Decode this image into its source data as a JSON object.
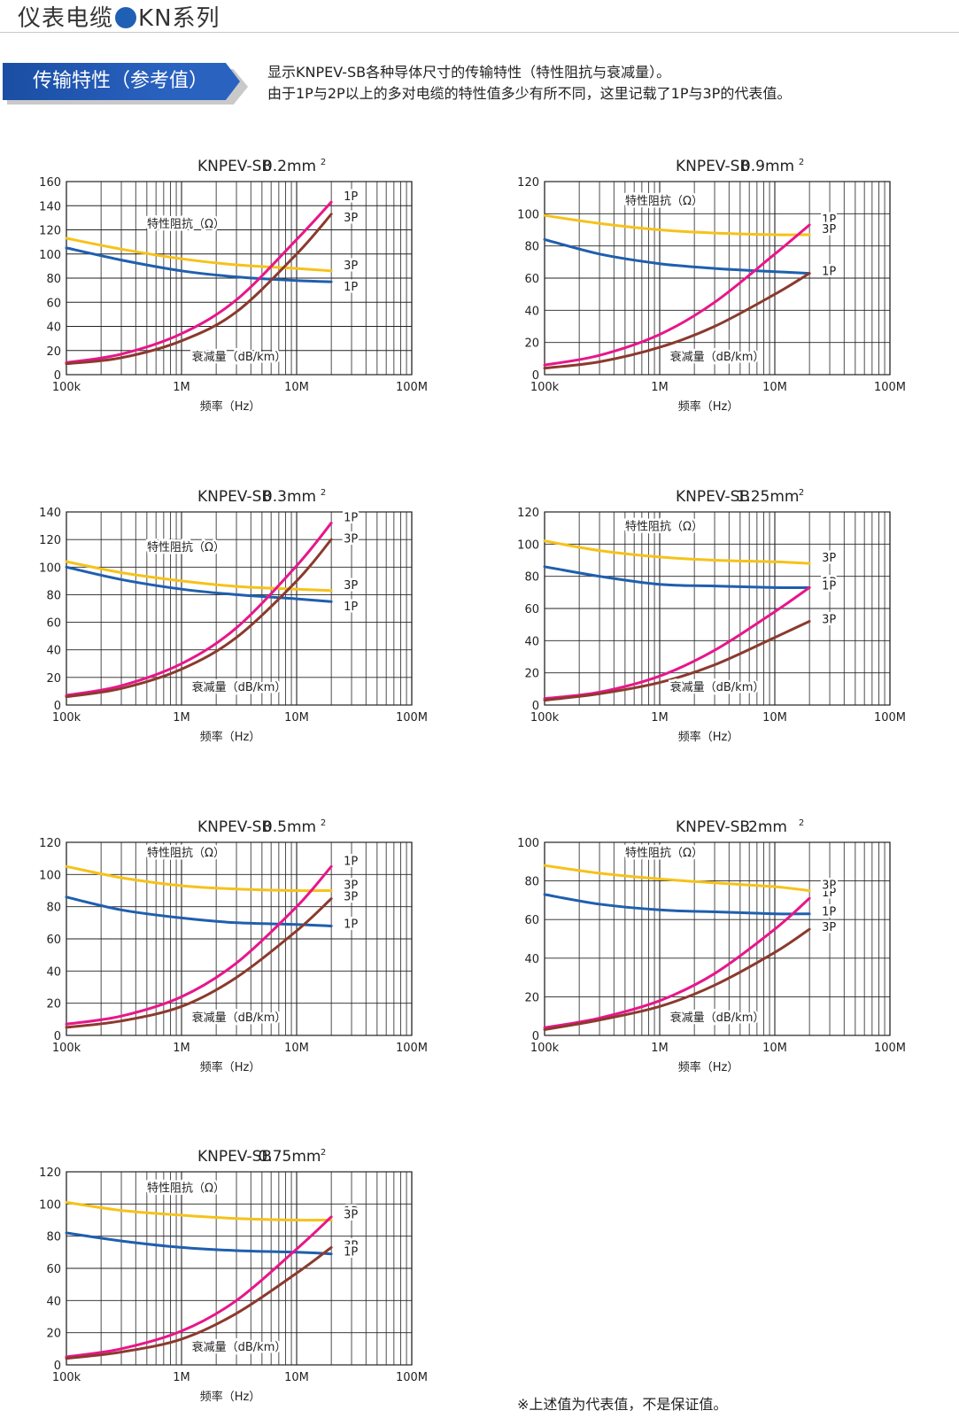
{
  "header": {
    "title_left": "仪表电缆",
    "title_right": "KN系列",
    "brand_color": "#1f5fb4"
  },
  "section": {
    "tab_label": "传输特性（参考值）",
    "intro_line1": "显示KNPEV-SB各种导体尺寸的传输特性（特性阻抗与衰减量）。",
    "intro_line2": "由于1P与2P以上的多对电缆的特性值多少有所不同，这里记载了1P与3P的代表值。"
  },
  "footnote": "※上述值为代表值，不是保证值。",
  "colors": {
    "impedance_3p": "#f6c21a",
    "impedance_1p": "#1f5fae",
    "attenuation_1p": "#e8168a",
    "attenuation_3p": "#8b3a2e"
  },
  "chart_data": [
    {
      "type": "line",
      "title": "KNPEV-SB",
      "size": "0.2mm",
      "xscale": "log",
      "xlim": [
        100000,
        100000000
      ],
      "xticks": [
        "100k",
        "1M",
        "10M",
        "100M"
      ],
      "xlabel": "频率（Hz）",
      "ylim": [
        0,
        160
      ],
      "yticks": [
        0,
        20,
        40,
        60,
        80,
        100,
        120,
        140,
        160
      ],
      "impedance_label": "特性阻抗（Ω）",
      "attenuation_label": "衰减量（dB/km）",
      "series": [
        {
          "name": "3P",
          "kind": "impedance",
          "x": [
            100000,
            300000,
            1000000,
            3000000,
            10000000,
            20000000
          ],
          "y": [
            113,
            104,
            96,
            91,
            88,
            86
          ]
        },
        {
          "name": "1P",
          "kind": "impedance",
          "x": [
            100000,
            300000,
            1000000,
            3000000,
            10000000,
            20000000
          ],
          "y": [
            105,
            95,
            86,
            81,
            78,
            77
          ]
        },
        {
          "name": "1P",
          "kind": "attenuation",
          "x": [
            100000,
            300000,
            1000000,
            3000000,
            10000000,
            20000000
          ],
          "y": [
            10,
            17,
            34,
            62,
            112,
            143
          ]
        },
        {
          "name": "3P",
          "kind": "attenuation",
          "x": [
            100000,
            300000,
            1000000,
            3000000,
            10000000,
            20000000
          ],
          "y": [
            9,
            14,
            28,
            52,
            100,
            133
          ]
        }
      ],
      "labels": {
        "att_top": "1P",
        "att_bottom": "3P",
        "imp_top": "3P",
        "imp_bottom": "1P"
      }
    },
    {
      "type": "line",
      "title": "KNPEV-SB",
      "size": "0.9mm",
      "xscale": "log",
      "xlim": [
        100000,
        100000000
      ],
      "xticks": [
        "100k",
        "1M",
        "10M",
        "100M"
      ],
      "xlabel": "频率（Hz）",
      "ylim": [
        0,
        120
      ],
      "yticks": [
        0,
        20,
        40,
        60,
        80,
        100,
        120
      ],
      "impedance_label": "特性阻抗（Ω）",
      "attenuation_label": "衰减量（dB/km）",
      "series": [
        {
          "name": "3P",
          "kind": "impedance",
          "x": [
            100000,
            300000,
            1000000,
            3000000,
            10000000,
            20000000
          ],
          "y": [
            99,
            94,
            90,
            88,
            87,
            87
          ]
        },
        {
          "name": "1P",
          "kind": "impedance",
          "x": [
            100000,
            300000,
            1000000,
            3000000,
            10000000,
            20000000
          ],
          "y": [
            84,
            75,
            69,
            66,
            64,
            63
          ]
        },
        {
          "name": "1P",
          "kind": "attenuation",
          "x": [
            100000,
            300000,
            1000000,
            3000000,
            10000000,
            20000000
          ],
          "y": [
            6,
            12,
            25,
            45,
            75,
            93
          ]
        },
        {
          "name": "3P",
          "kind": "attenuation",
          "x": [
            100000,
            300000,
            1000000,
            3000000,
            10000000,
            20000000
          ],
          "y": [
            4,
            8,
            17,
            30,
            50,
            63
          ]
        }
      ],
      "labels": {
        "att_top": "1P",
        "att_bottom": "3P",
        "imp_top": "3P",
        "imp_bottom": "1P"
      }
    },
    {
      "type": "line",
      "title": "KNPEV-SB",
      "size": "0.3mm",
      "xscale": "log",
      "xlim": [
        100000,
        100000000
      ],
      "xticks": [
        "100k",
        "1M",
        "10M",
        "100M"
      ],
      "xlabel": "频率（Hz）",
      "ylim": [
        0,
        140
      ],
      "yticks": [
        0,
        20,
        40,
        60,
        80,
        100,
        120,
        140
      ],
      "impedance_label": "特性阻抗（Ω）",
      "attenuation_label": "衰减量（dB/km）",
      "series": [
        {
          "name": "3P",
          "kind": "impedance",
          "x": [
            100000,
            300000,
            1000000,
            3000000,
            10000000,
            20000000
          ],
          "y": [
            104,
            96,
            90,
            86,
            84,
            83
          ]
        },
        {
          "name": "1P",
          "kind": "impedance",
          "x": [
            100000,
            300000,
            1000000,
            3000000,
            10000000,
            20000000
          ],
          "y": [
            100,
            91,
            84,
            80,
            77,
            75
          ]
        },
        {
          "name": "1P",
          "kind": "attenuation",
          "x": [
            100000,
            300000,
            1000000,
            3000000,
            10000000,
            20000000
          ],
          "y": [
            7,
            14,
            30,
            56,
            101,
            132
          ]
        },
        {
          "name": "3P",
          "kind": "attenuation",
          "x": [
            100000,
            300000,
            1000000,
            3000000,
            10000000,
            20000000
          ],
          "y": [
            6,
            12,
            26,
            49,
            90,
            120
          ]
        }
      ],
      "labels": {
        "att_top": "1P",
        "att_bottom": "3P",
        "imp_top": "3P",
        "imp_bottom": "1P"
      }
    },
    {
      "type": "line",
      "title": "KNPEV-SB",
      "size": "1.25mm",
      "xscale": "log",
      "xlim": [
        100000,
        100000000
      ],
      "xticks": [
        "100k",
        "1M",
        "10M",
        "100M"
      ],
      "xlabel": "频率（Hz）",
      "ylim": [
        0,
        120
      ],
      "yticks": [
        0,
        20,
        40,
        60,
        80,
        100,
        120
      ],
      "impedance_label": "特性阻抗（Ω）",
      "attenuation_label": "衰减量（dB/km）",
      "series": [
        {
          "name": "3P",
          "kind": "impedance",
          "x": [
            100000,
            300000,
            1000000,
            3000000,
            10000000,
            20000000
          ],
          "y": [
            102,
            96,
            92,
            90,
            89,
            88
          ]
        },
        {
          "name": "1P",
          "kind": "impedance",
          "x": [
            100000,
            300000,
            1000000,
            3000000,
            10000000,
            20000000
          ],
          "y": [
            86,
            80,
            75,
            74,
            73,
            73
          ]
        },
        {
          "name": "1P",
          "kind": "attenuation",
          "x": [
            100000,
            300000,
            1000000,
            3000000,
            10000000,
            20000000
          ],
          "y": [
            4,
            8,
            18,
            34,
            58,
            73
          ]
        },
        {
          "name": "3P",
          "kind": "attenuation",
          "x": [
            100000,
            300000,
            1000000,
            3000000,
            10000000,
            20000000
          ],
          "y": [
            3,
            7,
            14,
            25,
            42,
            52
          ]
        }
      ],
      "labels": {
        "att_top": "1P",
        "att_bottom": "3P",
        "imp_top": "3P",
        "imp_bottom": "1P"
      }
    },
    {
      "type": "line",
      "title": "KNPEV-SB",
      "size": "0.5mm",
      "xscale": "log",
      "xlim": [
        100000,
        100000000
      ],
      "xticks": [
        "100k",
        "1M",
        "10M",
        "100M"
      ],
      "xlabel": "频率（Hz）",
      "ylim": [
        0,
        120
      ],
      "yticks": [
        0,
        20,
        40,
        60,
        80,
        100,
        120
      ],
      "impedance_label": "特性阻抗（Ω）",
      "attenuation_label": "衰减量（dB/km）",
      "series": [
        {
          "name": "3P",
          "kind": "impedance",
          "x": [
            100000,
            300000,
            1000000,
            3000000,
            10000000,
            20000000
          ],
          "y": [
            105,
            98,
            93,
            91,
            90,
            90
          ]
        },
        {
          "name": "1P",
          "kind": "impedance",
          "x": [
            100000,
            300000,
            1000000,
            3000000,
            10000000,
            20000000
          ],
          "y": [
            86,
            78,
            73,
            70,
            69,
            68
          ]
        },
        {
          "name": "1P",
          "kind": "attenuation",
          "x": [
            100000,
            300000,
            1000000,
            3000000,
            10000000,
            20000000
          ],
          "y": [
            7,
            12,
            24,
            45,
            80,
            105
          ]
        },
        {
          "name": "3P",
          "kind": "attenuation",
          "x": [
            100000,
            300000,
            1000000,
            3000000,
            10000000,
            20000000
          ],
          "y": [
            5,
            9,
            18,
            36,
            65,
            85
          ]
        }
      ],
      "labels": {
        "att_top": "1P",
        "att_bottom": "3P",
        "imp_top": "3P",
        "imp_bottom": "1P"
      }
    },
    {
      "type": "line",
      "title": "KNPEV-SB",
      "size": "2mm",
      "xscale": "log",
      "xlim": [
        100000,
        100000000
      ],
      "xticks": [
        "100k",
        "1M",
        "10M",
        "100M"
      ],
      "xlabel": "频率（Hz）",
      "ylim": [
        0,
        100
      ],
      "yticks": [
        0,
        20,
        40,
        60,
        80,
        100
      ],
      "impedance_label": "特性阻抗（Ω）",
      "attenuation_label": "衰减量（dB/km）",
      "series": [
        {
          "name": "3P",
          "kind": "impedance",
          "x": [
            100000,
            300000,
            1000000,
            3000000,
            10000000,
            20000000
          ],
          "y": [
            88,
            84,
            81,
            79,
            77,
            75
          ]
        },
        {
          "name": "1P",
          "kind": "impedance",
          "x": [
            100000,
            300000,
            1000000,
            3000000,
            10000000,
            20000000
          ],
          "y": [
            73,
            68,
            65,
            64,
            63,
            63
          ]
        },
        {
          "name": "1P",
          "kind": "attenuation",
          "x": [
            100000,
            300000,
            1000000,
            3000000,
            10000000,
            20000000
          ],
          "y": [
            4,
            9,
            18,
            32,
            55,
            71
          ]
        },
        {
          "name": "3P",
          "kind": "attenuation",
          "x": [
            100000,
            300000,
            1000000,
            3000000,
            10000000,
            20000000
          ],
          "y": [
            3,
            8,
            15,
            26,
            43,
            55
          ]
        }
      ],
      "labels": {
        "att_top": "1P",
        "att_bottom": "3P",
        "imp_top": "3P",
        "imp_bottom": "1P"
      }
    },
    {
      "type": "line",
      "title": "KNPEV-SB",
      "size": "0.75mm",
      "xscale": "log",
      "xlim": [
        100000,
        100000000
      ],
      "xticks": [
        "100k",
        "1M",
        "10M",
        "100M"
      ],
      "xlabel": "频率（Hz）",
      "ylim": [
        0,
        120
      ],
      "yticks": [
        0,
        20,
        40,
        60,
        80,
        100,
        120
      ],
      "impedance_label": "特性阻抗（Ω）",
      "attenuation_label": "衰减量（dB/km）",
      "series": [
        {
          "name": "3P",
          "kind": "impedance",
          "x": [
            100000,
            300000,
            1000000,
            3000000,
            10000000,
            20000000
          ],
          "y": [
            101,
            96,
            93,
            91,
            90,
            90
          ]
        },
        {
          "name": "1P",
          "kind": "impedance",
          "x": [
            100000,
            300000,
            1000000,
            3000000,
            10000000,
            20000000
          ],
          "y": [
            82,
            77,
            73,
            71,
            70,
            69
          ]
        },
        {
          "name": "1P",
          "kind": "attenuation",
          "x": [
            100000,
            300000,
            1000000,
            3000000,
            10000000,
            20000000
          ],
          "y": [
            5,
            10,
            21,
            40,
            72,
            92
          ]
        },
        {
          "name": "3P",
          "kind": "attenuation",
          "x": [
            100000,
            300000,
            1000000,
            3000000,
            10000000,
            20000000
          ],
          "y": [
            4,
            8,
            16,
            32,
            57,
            73
          ]
        }
      ],
      "labels": {
        "att_top": "1P",
        "att_bottom": "3P",
        "imp_top": "3P",
        "imp_bottom": "1P"
      }
    }
  ]
}
